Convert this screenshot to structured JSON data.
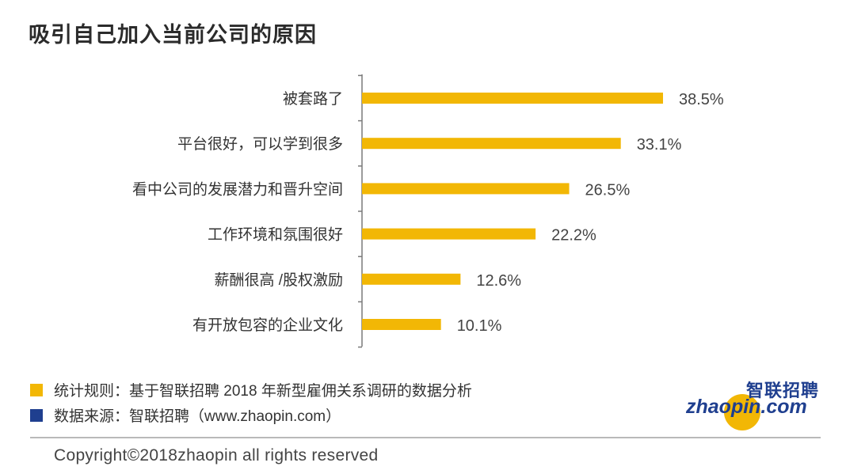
{
  "title": "吸引自己加入当前公司的原因",
  "chart_data": {
    "type": "bar",
    "orientation": "horizontal",
    "categories": [
      "被套路了",
      "平台很好，可以学到很多",
      "看中公司的发展潜力和晋升空间",
      "工作环境和氛围很好",
      "薪酬很高 /股权激励",
      "有开放包容的企业文化"
    ],
    "values": [
      38.5,
      33.1,
      26.5,
      22.2,
      12.6,
      10.1
    ],
    "value_labels": [
      "38.5%",
      "33.1%",
      "26.5%",
      "22.2%",
      "12.6%",
      "10.1%"
    ],
    "bar_color": "#f2b705",
    "xlim": [
      0,
      38.5
    ],
    "grid": false,
    "legend": "none"
  },
  "legend": {
    "items": [
      {
        "label": "统计规则：基于智联招聘 2018 年新型雇佣关系调研的数据分析",
        "color": "#f2b705"
      },
      {
        "label": "数据来源：智联招聘（www.zhaopin.com）",
        "color": "#1f3f8f"
      }
    ]
  },
  "logo": {
    "cn": "智联招聘",
    "en": "zhaopin.com"
  },
  "footer": {
    "copyright": "Copyright©2018zhaopin all rights reserved"
  }
}
